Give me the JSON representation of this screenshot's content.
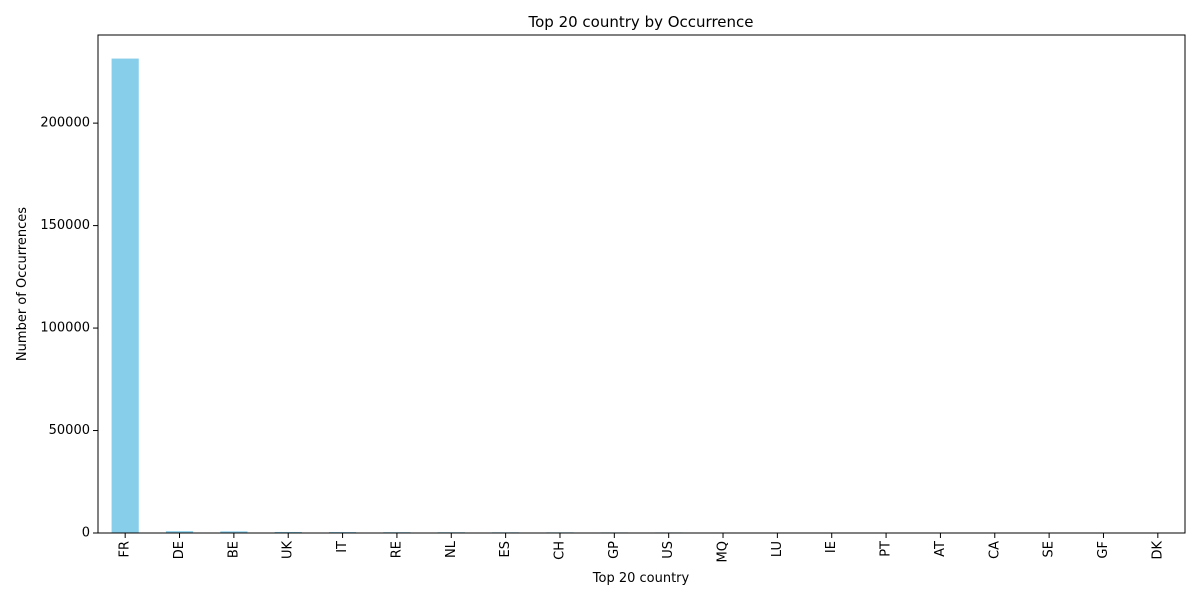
{
  "chart_data": {
    "type": "bar",
    "title": "Top 20 country by Occurrence",
    "xlabel": "Top 20 country",
    "ylabel": "Number of Occurrences",
    "categories": [
      "FR",
      "DE",
      "BE",
      "UK",
      "IT",
      "RE",
      "NL",
      "ES",
      "CH",
      "GP",
      "US",
      "MQ",
      "LU",
      "IE",
      "PT",
      "AT",
      "CA",
      "SE",
      "GF",
      "DK"
    ],
    "values": [
      231500,
      900,
      800,
      500,
      450,
      400,
      380,
      350,
      330,
      300,
      280,
      250,
      180,
      150,
      130,
      120,
      110,
      100,
      90,
      80
    ],
    "ylim": [
      0,
      243000
    ],
    "yticks": [
      0,
      50000,
      100000,
      150000,
      200000
    ],
    "bar_color": "#87ceeb",
    "grid": false,
    "legend": "none"
  }
}
